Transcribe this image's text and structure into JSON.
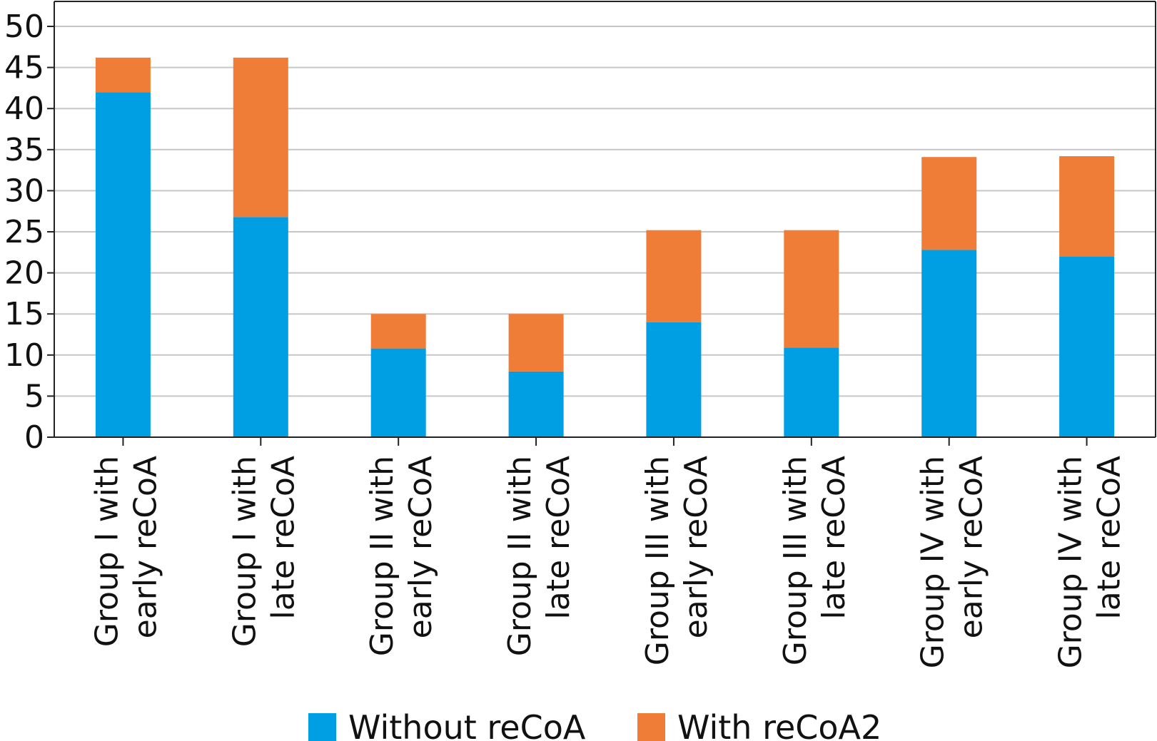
{
  "chart_data": {
    "type": "bar",
    "stacked": true,
    "categories": [
      [
        "Group I with",
        "early reCoA"
      ],
      [
        "Group I with",
        "late reCoA"
      ],
      [
        "Group II with",
        "early reCoA"
      ],
      [
        "Group II with",
        "late reCoA"
      ],
      [
        "Group III with",
        "early reCoA"
      ],
      [
        "Group III with",
        "late reCoA"
      ],
      [
        "Group IV with",
        "early reCoA"
      ],
      [
        "Group IV with",
        "late reCoA"
      ]
    ],
    "series": [
      {
        "name": "Without reCoA",
        "color": "#009fe3",
        "values": [
          42,
          26.8,
          10.8,
          8,
          14,
          10.9,
          22.8,
          22
        ]
      },
      {
        "name": "With reCoA2",
        "color": "#ef7d37",
        "values": [
          4.2,
          19.4,
          4.2,
          7,
          11.2,
          14.3,
          11.3,
          12.2
        ]
      }
    ],
    "ylim": [
      0,
      50
    ],
    "yticks": [
      0,
      5,
      10,
      15,
      20,
      25,
      30,
      35,
      40,
      45,
      50
    ],
    "grid": true,
    "legend_position": "bottom",
    "title": "",
    "xlabel": "",
    "ylabel": ""
  }
}
